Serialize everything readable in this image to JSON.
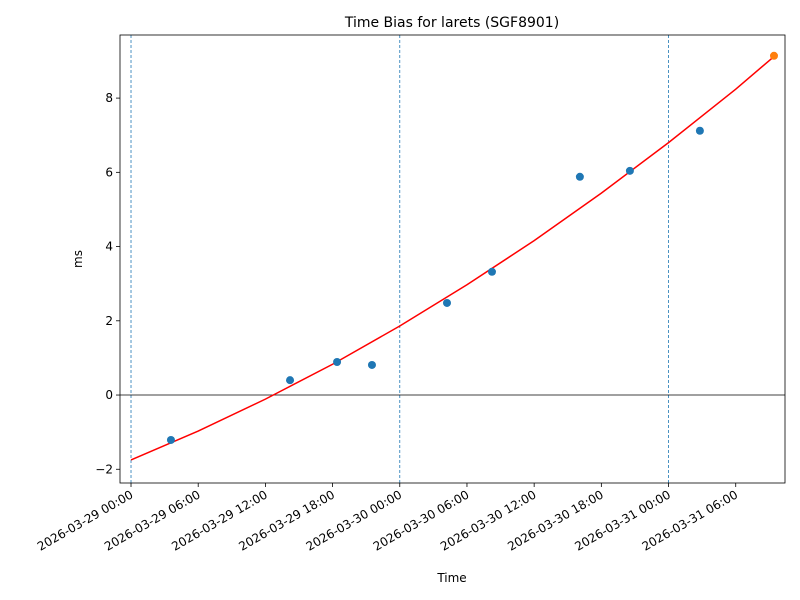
{
  "chart_data": {
    "type": "scatter",
    "title": "Time Bias for larets (SGF8901)",
    "xlabel": "Time",
    "ylabel": "ms",
    "xlim": [
      "2026-03-28 23:01",
      "2026-03-31 10:24"
    ],
    "ylim": [
      -2.37,
      9.7
    ],
    "xticks": [
      "2026-03-29 00:00",
      "2026-03-29 06:00",
      "2026-03-29 12:00",
      "2026-03-29 18:00",
      "2026-03-30 00:00",
      "2026-03-30 06:00",
      "2026-03-30 12:00",
      "2026-03-30 18:00",
      "2026-03-31 00:00",
      "2026-03-31 06:00"
    ],
    "yticks": [
      {
        "value": -2,
        "label": "−2"
      },
      0,
      2,
      4,
      6,
      8
    ],
    "vlines": [
      "2026-03-29 00:00",
      "2026-03-30 00:00",
      "2026-03-31 00:00"
    ],
    "vline_color": "#1f77b4",
    "hline": 0,
    "series": [
      {
        "type": "scatter",
        "color": "#1f77b4",
        "x": [
          "2026-03-29 03:34",
          "2026-03-29 14:12",
          "2026-03-29 18:24",
          "2026-03-29 21:31",
          "2026-03-30 04:13",
          "2026-03-30 08:14",
          "2026-03-30 16:05",
          "2026-03-30 20:33",
          "2026-03-31 02:48"
        ],
        "values": [
          -1.21,
          0.4,
          0.89,
          0.81,
          2.48,
          3.32,
          5.88,
          6.04,
          7.12
        ]
      },
      {
        "type": "scatter",
        "color": "#ff7f0e",
        "x": [
          "2026-03-31 09:25"
        ],
        "values": [
          9.14
        ]
      },
      {
        "type": "line",
        "color": "#ff0000",
        "x": [
          "2026-03-29 00:00",
          "2026-03-29 06:00",
          "2026-03-29 12:00",
          "2026-03-29 18:00",
          "2026-03-30 00:00",
          "2026-03-30 06:00",
          "2026-03-30 12:00",
          "2026-03-30 18:00",
          "2026-03-31 00:00",
          "2026-03-31 06:00",
          "2026-03-31 09:25"
        ],
        "values": [
          -1.75,
          -0.97,
          -0.11,
          0.83,
          1.86,
          2.97,
          4.16,
          5.44,
          6.8,
          8.24,
          9.12
        ]
      }
    ]
  }
}
